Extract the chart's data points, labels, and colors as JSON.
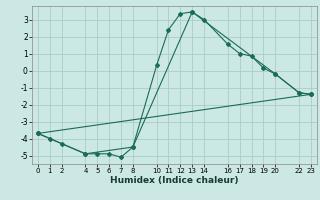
{
  "xlabel": "Humidex (Indice chaleur)",
  "background_color": "#cce8e4",
  "grid_color": "#aaccc8",
  "line_color": "#1a6b5a",
  "line1_x": [
    0,
    1,
    2,
    4,
    5,
    6,
    7,
    8,
    10,
    11,
    12,
    13,
    14,
    16,
    17,
    18,
    19,
    20,
    22,
    23
  ],
  "line1_y": [
    -3.7,
    -4.0,
    -4.3,
    -4.9,
    -4.9,
    -4.9,
    -5.1,
    -4.5,
    0.3,
    2.4,
    3.35,
    3.45,
    3.0,
    1.55,
    1.0,
    0.85,
    0.15,
    -0.2,
    -1.3,
    -1.4
  ],
  "line2_x": [
    0,
    4,
    8,
    13,
    20,
    22,
    23
  ],
  "line2_y": [
    -3.7,
    -4.9,
    -4.5,
    3.45,
    -0.2,
    -1.3,
    -1.4
  ],
  "line3_x": [
    0,
    23
  ],
  "line3_y": [
    -3.7,
    -1.4
  ],
  "ylim": [
    -5.5,
    3.8
  ],
  "xlim": [
    -0.5,
    23.5
  ],
  "yticks": [
    -5,
    -4,
    -3,
    -2,
    -1,
    0,
    1,
    2,
    3
  ],
  "xticks": [
    0,
    1,
    2,
    4,
    5,
    6,
    7,
    8,
    10,
    11,
    12,
    13,
    14,
    16,
    17,
    18,
    19,
    20,
    22,
    23
  ]
}
